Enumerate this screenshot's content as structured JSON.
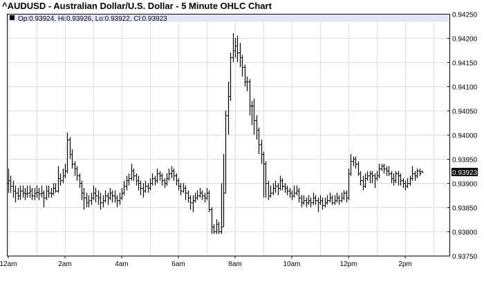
{
  "title": "^AUDUSD - Australian Dollar/U.S. Dollar - 5 Minute OHLC Chart",
  "info_bar": "Op:0.93924, Hi:0.93926, Lo:0.93922, Cl:0.93923",
  "colors": {
    "bars": "#000000",
    "grid": "#dddddd",
    "info_bar_bg": "#e6e6fa",
    "last_price_bg": "#000000",
    "last_price_text": "#ffffff"
  },
  "chart_data": {
    "type": "ohlc",
    "interval": "5 Minute",
    "title": "^AUDUSD - Australian Dollar/U.S. Dollar - 5 Minute OHLC Chart",
    "ylim": [
      0.9375,
      0.9425
    ],
    "y_ticks": [
      "0.94250",
      "0.94200",
      "0.94150",
      "0.94100",
      "0.94050",
      "0.94000",
      "0.93950",
      "0.93900",
      "0.93850",
      "0.93800",
      "0.93750"
    ],
    "x_ticks": [
      "12am",
      "2am",
      "4am",
      "6am",
      "8am",
      "10am",
      "12pm",
      "2pm"
    ],
    "grid": true,
    "y_axis_side": "right",
    "last_price": "0.93923",
    "bars_ohlc": [
      [
        0.939,
        0.9393,
        0.9388,
        0.93905
      ],
      [
        0.93905,
        0.93915,
        0.9388,
        0.93895
      ],
      [
        0.93895,
        0.93905,
        0.9387,
        0.93885
      ],
      [
        0.93885,
        0.93895,
        0.9386,
        0.9388
      ],
      [
        0.9388,
        0.9389,
        0.93865,
        0.93875
      ],
      [
        0.93875,
        0.93895,
        0.93865,
        0.93885
      ],
      [
        0.93885,
        0.93895,
        0.9387,
        0.9388
      ],
      [
        0.9388,
        0.9389,
        0.93865,
        0.93878
      ],
      [
        0.93878,
        0.93895,
        0.9387,
        0.9388
      ],
      [
        0.9388,
        0.93895,
        0.9387,
        0.93885
      ],
      [
        0.93885,
        0.9389,
        0.93865,
        0.93875
      ],
      [
        0.93875,
        0.9389,
        0.93865,
        0.9388
      ],
      [
        0.9388,
        0.93895,
        0.9387,
        0.93882
      ],
      [
        0.93882,
        0.9389,
        0.93865,
        0.93878
      ],
      [
        0.93878,
        0.93895,
        0.9387,
        0.9388
      ],
      [
        0.9388,
        0.93885,
        0.9385,
        0.9387
      ],
      [
        0.9387,
        0.93895,
        0.93865,
        0.93885
      ],
      [
        0.93885,
        0.93895,
        0.9387,
        0.9388
      ],
      [
        0.9388,
        0.9389,
        0.9387,
        0.93878
      ],
      [
        0.93878,
        0.939,
        0.93875,
        0.9389
      ],
      [
        0.9389,
        0.939,
        0.9388,
        0.93885
      ],
      [
        0.93885,
        0.93935,
        0.9388,
        0.9391
      ],
      [
        0.9391,
        0.9392,
        0.93895,
        0.93905
      ],
      [
        0.93905,
        0.9393,
        0.939,
        0.93915
      ],
      [
        0.93915,
        0.9394,
        0.9391,
        0.93925
      ],
      [
        0.93925,
        0.94005,
        0.9392,
        0.9399
      ],
      [
        0.9399,
        0.93995,
        0.9395,
        0.9396
      ],
      [
        0.9396,
        0.9397,
        0.9393,
        0.9394
      ],
      [
        0.9394,
        0.93945,
        0.93915,
        0.9393
      ],
      [
        0.9393,
        0.93935,
        0.93905,
        0.93915
      ],
      [
        0.93915,
        0.9392,
        0.9389,
        0.939
      ],
      [
        0.939,
        0.93905,
        0.93865,
        0.9388
      ],
      [
        0.9388,
        0.9389,
        0.93845,
        0.9387
      ],
      [
        0.9387,
        0.9388,
        0.9385,
        0.9386
      ],
      [
        0.9386,
        0.93875,
        0.9385,
        0.93865
      ],
      [
        0.93865,
        0.9388,
        0.93855,
        0.9387
      ],
      [
        0.9387,
        0.93895,
        0.93865,
        0.9388
      ],
      [
        0.9388,
        0.9389,
        0.9386,
        0.93875
      ],
      [
        0.93875,
        0.93885,
        0.93855,
        0.9387
      ],
      [
        0.9387,
        0.9388,
        0.93845,
        0.9386
      ],
      [
        0.9386,
        0.93875,
        0.9385,
        0.93865
      ],
      [
        0.93865,
        0.93885,
        0.9386,
        0.93875
      ],
      [
        0.93875,
        0.9388,
        0.93855,
        0.9387
      ],
      [
        0.9387,
        0.9389,
        0.93865,
        0.9388
      ],
      [
        0.9388,
        0.93885,
        0.9386,
        0.93875
      ],
      [
        0.93875,
        0.93885,
        0.9386,
        0.9387
      ],
      [
        0.9387,
        0.93875,
        0.9385,
        0.93865
      ],
      [
        0.93865,
        0.9388,
        0.93855,
        0.9387
      ],
      [
        0.9387,
        0.9389,
        0.93865,
        0.9388
      ],
      [
        0.9388,
        0.93905,
        0.93875,
        0.93895
      ],
      [
        0.93895,
        0.93915,
        0.93885,
        0.93905
      ],
      [
        0.93905,
        0.9392,
        0.93895,
        0.9391
      ],
      [
        0.9391,
        0.9394,
        0.93905,
        0.93925
      ],
      [
        0.93925,
        0.9393,
        0.93905,
        0.93915
      ],
      [
        0.93915,
        0.9392,
        0.93895,
        0.93905
      ],
      [
        0.93905,
        0.93915,
        0.93885,
        0.939
      ],
      [
        0.939,
        0.93905,
        0.93875,
        0.9389
      ],
      [
        0.9389,
        0.939,
        0.9387,
        0.93885
      ],
      [
        0.93885,
        0.93905,
        0.9388,
        0.93895
      ],
      [
        0.93895,
        0.939,
        0.9388,
        0.9389
      ],
      [
        0.9389,
        0.9391,
        0.93885,
        0.939
      ],
      [
        0.939,
        0.9392,
        0.93895,
        0.9391
      ],
      [
        0.9391,
        0.93915,
        0.93895,
        0.93905
      ],
      [
        0.93905,
        0.9393,
        0.939,
        0.9392
      ],
      [
        0.9392,
        0.93925,
        0.93905,
        0.93915
      ],
      [
        0.93915,
        0.9392,
        0.93895,
        0.93905
      ],
      [
        0.93905,
        0.9391,
        0.9389,
        0.939
      ],
      [
        0.939,
        0.9392,
        0.93895,
        0.9391
      ],
      [
        0.9391,
        0.9393,
        0.93905,
        0.9392
      ],
      [
        0.9392,
        0.93935,
        0.9391,
        0.93925
      ],
      [
        0.93925,
        0.9393,
        0.93905,
        0.93915
      ],
      [
        0.93915,
        0.9392,
        0.93895,
        0.93905
      ],
      [
        0.93905,
        0.9391,
        0.93885,
        0.93895
      ],
      [
        0.93895,
        0.939,
        0.93875,
        0.93885
      ],
      [
        0.93885,
        0.939,
        0.9388,
        0.9389
      ],
      [
        0.9389,
        0.93895,
        0.93865,
        0.9388
      ],
      [
        0.9388,
        0.93885,
        0.9386,
        0.9387
      ],
      [
        0.9387,
        0.93875,
        0.93845,
        0.9386
      ],
      [
        0.9386,
        0.93875,
        0.9384,
        0.93865
      ],
      [
        0.93865,
        0.9388,
        0.9386,
        0.9387
      ],
      [
        0.9387,
        0.93885,
        0.93865,
        0.93875
      ],
      [
        0.93875,
        0.9389,
        0.9387,
        0.9388
      ],
      [
        0.9388,
        0.93885,
        0.93865,
        0.93875
      ],
      [
        0.93875,
        0.9388,
        0.9386,
        0.9387
      ],
      [
        0.9387,
        0.9389,
        0.93865,
        0.9388
      ],
      [
        0.9388,
        0.93885,
        0.9384,
        0.93845
      ],
      [
        0.93845,
        0.9385,
        0.93795,
        0.9381
      ],
      [
        0.9381,
        0.93815,
        0.93795,
        0.938
      ],
      [
        0.938,
        0.93825,
        0.93795,
        0.93815
      ],
      [
        0.93815,
        0.9382,
        0.93795,
        0.938
      ],
      [
        0.938,
        0.939,
        0.93795,
        0.9381
      ],
      [
        0.9381,
        0.9396,
        0.9381,
        0.9388
      ],
      [
        0.9388,
        0.9405,
        0.9388,
        0.9404
      ],
      [
        0.9404,
        0.9411,
        0.94,
        0.9408
      ],
      [
        0.9408,
        0.9417,
        0.9407,
        0.9416
      ],
      [
        0.9416,
        0.9421,
        0.9415,
        0.94175
      ],
      [
        0.94175,
        0.942,
        0.9416,
        0.94185
      ],
      [
        0.94185,
        0.94205,
        0.9415,
        0.9417
      ],
      [
        0.9417,
        0.9419,
        0.9414,
        0.9416
      ],
      [
        0.9416,
        0.94165,
        0.9412,
        0.9414
      ],
      [
        0.9414,
        0.94145,
        0.941,
        0.9411
      ],
      [
        0.9411,
        0.9412,
        0.9409,
        0.9411
      ],
      [
        0.9411,
        0.94115,
        0.9404,
        0.9406
      ],
      [
        0.9406,
        0.9407,
        0.9402,
        0.9406
      ],
      [
        0.9406,
        0.94075,
        0.94,
        0.9403
      ],
      [
        0.9403,
        0.9404,
        0.9399,
        0.9401
      ],
      [
        0.9401,
        0.94015,
        0.9396,
        0.9398
      ],
      [
        0.9398,
        0.9399,
        0.9394,
        0.9396
      ],
      [
        0.9396,
        0.93965,
        0.9387,
        0.9394
      ],
      [
        0.9394,
        0.93945,
        0.9387,
        0.939
      ],
      [
        0.939,
        0.93905,
        0.93865,
        0.93875
      ],
      [
        0.93875,
        0.93895,
        0.9387,
        0.9388
      ],
      [
        0.9388,
        0.939,
        0.93875,
        0.9389
      ],
      [
        0.9389,
        0.93905,
        0.9388,
        0.93895
      ],
      [
        0.93895,
        0.939,
        0.93875,
        0.9389
      ],
      [
        0.9389,
        0.93915,
        0.93885,
        0.93905
      ],
      [
        0.93905,
        0.9391,
        0.93885,
        0.93895
      ],
      [
        0.93895,
        0.939,
        0.9388,
        0.9389
      ],
      [
        0.9389,
        0.93895,
        0.93875,
        0.93885
      ],
      [
        0.93885,
        0.9389,
        0.9387,
        0.9388
      ],
      [
        0.9388,
        0.93885,
        0.93865,
        0.93875
      ],
      [
        0.93875,
        0.93895,
        0.9387,
        0.9388
      ],
      [
        0.9388,
        0.93895,
        0.93875,
        0.93885
      ],
      [
        0.93885,
        0.9389,
        0.9386,
        0.9387
      ],
      [
        0.9387,
        0.93875,
        0.9385,
        0.9386
      ],
      [
        0.9386,
        0.93875,
        0.93855,
        0.93865
      ],
      [
        0.93865,
        0.9387,
        0.9385,
        0.9386
      ],
      [
        0.9386,
        0.93875,
        0.93855,
        0.93865
      ],
      [
        0.93865,
        0.9387,
        0.9385,
        0.9386
      ],
      [
        0.9386,
        0.9388,
        0.93855,
        0.9387
      ],
      [
        0.9387,
        0.93875,
        0.93855,
        0.93865
      ],
      [
        0.93865,
        0.9387,
        0.9384,
        0.9386
      ],
      [
        0.9386,
        0.93875,
        0.93855,
        0.93865
      ],
      [
        0.93865,
        0.9387,
        0.93845,
        0.93855
      ],
      [
        0.93855,
        0.9387,
        0.9385,
        0.9386
      ],
      [
        0.9386,
        0.93875,
        0.93855,
        0.93865
      ],
      [
        0.93865,
        0.9388,
        0.9386,
        0.9387
      ],
      [
        0.9387,
        0.93875,
        0.93855,
        0.9386
      ],
      [
        0.9386,
        0.93875,
        0.93855,
        0.93865
      ],
      [
        0.93865,
        0.9388,
        0.9386,
        0.9387
      ],
      [
        0.9387,
        0.93875,
        0.93855,
        0.93865
      ],
      [
        0.93865,
        0.9388,
        0.9386,
        0.9387
      ],
      [
        0.9387,
        0.93885,
        0.93865,
        0.9388
      ],
      [
        0.9388,
        0.93885,
        0.9386,
        0.9387
      ],
      [
        0.9387,
        0.9393,
        0.93865,
        0.9392
      ],
      [
        0.9392,
        0.9396,
        0.93915,
        0.93945
      ],
      [
        0.93945,
        0.93955,
        0.93935,
        0.9395
      ],
      [
        0.9395,
        0.93955,
        0.9393,
        0.9394
      ],
      [
        0.9394,
        0.93945,
        0.93915,
        0.9392
      ],
      [
        0.9392,
        0.93925,
        0.93895,
        0.93905
      ],
      [
        0.93905,
        0.93915,
        0.93885,
        0.93895
      ],
      [
        0.93895,
        0.9392,
        0.9389,
        0.9391
      ],
      [
        0.9391,
        0.93925,
        0.93905,
        0.93915
      ],
      [
        0.93915,
        0.93925,
        0.939,
        0.9392
      ],
      [
        0.9392,
        0.93925,
        0.939,
        0.93915
      ],
      [
        0.93915,
        0.9392,
        0.9389,
        0.9391
      ],
      [
        0.9391,
        0.93925,
        0.93905,
        0.93915
      ],
      [
        0.93915,
        0.9394,
        0.9391,
        0.9393
      ],
      [
        0.9393,
        0.9394,
        0.93925,
        0.93935
      ],
      [
        0.93935,
        0.9394,
        0.9392,
        0.9393
      ],
      [
        0.9393,
        0.93935,
        0.93915,
        0.93925
      ],
      [
        0.93925,
        0.93935,
        0.93915,
        0.9392
      ],
      [
        0.9392,
        0.93925,
        0.939,
        0.9391
      ],
      [
        0.9391,
        0.9392,
        0.93895,
        0.93905
      ],
      [
        0.93905,
        0.93925,
        0.939,
        0.9392
      ],
      [
        0.9392,
        0.93925,
        0.93895,
        0.93915
      ],
      [
        0.93915,
        0.9392,
        0.93895,
        0.93905
      ],
      [
        0.93905,
        0.9391,
        0.9389,
        0.939
      ],
      [
        0.939,
        0.93905,
        0.93885,
        0.93895
      ],
      [
        0.93895,
        0.9391,
        0.9389,
        0.939
      ],
      [
        0.939,
        0.93915,
        0.93895,
        0.9391
      ],
      [
        0.9391,
        0.93935,
        0.93905,
        0.9392
      ],
      [
        0.9392,
        0.93925,
        0.93905,
        0.93915
      ],
      [
        0.93915,
        0.9393,
        0.9391,
        0.93925
      ],
      [
        0.93925,
        0.9393,
        0.93915,
        0.9392
      ],
      [
        0.93924,
        0.93926,
        0.93922,
        0.93923
      ]
    ]
  }
}
